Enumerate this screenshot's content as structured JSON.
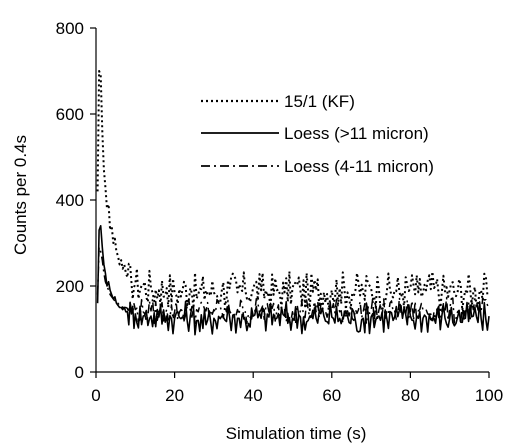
{
  "chart_data": {
    "type": "line",
    "xlabel": "Simulation time (s)",
    "ylabel": "Counts per 0.4s",
    "xlim": [
      0,
      100
    ],
    "ylim": [
      0,
      800
    ],
    "xticks": [
      "0",
      "20",
      "40",
      "60",
      "80",
      "100"
    ],
    "yticks": [
      "0",
      "200",
      "400",
      "600",
      "800"
    ],
    "grid": false,
    "legend_position": "top-right",
    "series": [
      {
        "name": "15/1 (KF)",
        "style": "dotted",
        "color": "#000000",
        "x": [
          0.4,
          0.8,
          1.2,
          1.6,
          2.0,
          2.4,
          2.8,
          3.2,
          3.6,
          4.0,
          4.4,
          4.8,
          5.2,
          5.6,
          6.0,
          6.4,
          6.8,
          7.2,
          7.6,
          8.0,
          9.0,
          10.0,
          12.0,
          14.0,
          16.0,
          18.0,
          20.0,
          22.0,
          24.0,
          26.0,
          28.0,
          30.0,
          32.0,
          34.0,
          36.0,
          38.0,
          40.0,
          42.0,
          44.0,
          46.0,
          48.0,
          50.0,
          52.0,
          54.0,
          56.0,
          58.0,
          60.0,
          62.0,
          64.0,
          66.0,
          68.0,
          70.0,
          72.0,
          74.0,
          76.0,
          78.0,
          80.0,
          82.0,
          84.0,
          86.0,
          88.0,
          90.0,
          92.0,
          94.0,
          96.0,
          98.0,
          100.0
        ],
        "values": [
          420,
          700,
          690,
          560,
          470,
          430,
          380,
          390,
          330,
          340,
          300,
          310,
          280,
          270,
          250,
          260,
          240,
          250,
          230,
          220,
          210,
          205,
          200,
          195,
          190,
          195,
          185,
          190,
          195,
          180,
          190,
          185,
          190,
          195,
          185,
          190,
          195,
          190,
          185,
          190,
          185,
          195,
          190,
          185,
          190,
          185,
          190,
          195,
          185,
          190,
          185,
          195,
          190,
          185,
          190,
          185,
          195,
          185,
          190,
          195,
          185,
          190,
          185,
          190,
          185,
          190,
          180
        ]
      },
      {
        "name": "Loess (>11 micron)",
        "style": "solid",
        "color": "#000000",
        "x": [
          0.4,
          0.8,
          1.2,
          1.6,
          2.0,
          2.4,
          2.8,
          3.2,
          3.6,
          4.0,
          4.4,
          4.8,
          5.2,
          5.6,
          6.0,
          6.4,
          6.8,
          7.2,
          7.6,
          8.0,
          9.0,
          10.0,
          12.0,
          14.0,
          16.0,
          18.0,
          20.0,
          22.0,
          24.0,
          26.0,
          28.0,
          30.0,
          32.0,
          34.0,
          36.0,
          38.0,
          40.0,
          42.0,
          44.0,
          46.0,
          48.0,
          50.0,
          52.0,
          54.0,
          56.0,
          58.0,
          60.0,
          62.0,
          64.0,
          66.0,
          68.0,
          70.0,
          72.0,
          74.0,
          76.0,
          78.0,
          80.0,
          82.0,
          84.0,
          86.0,
          88.0,
          90.0,
          92.0,
          94.0,
          96.0,
          98.0,
          100.0
        ],
        "values": [
          160,
          330,
          340,
          290,
          250,
          230,
          200,
          210,
          190,
          180,
          170,
          175,
          160,
          155,
          150,
          150,
          145,
          150,
          140,
          140,
          135,
          135,
          130,
          130,
          128,
          130,
          125,
          128,
          130,
          120,
          110,
          125,
          130,
          128,
          125,
          120,
          130,
          125,
          128,
          125,
          130,
          125,
          128,
          120,
          125,
          130,
          128,
          125,
          130,
          120,
          125,
          128,
          130,
          125,
          128,
          125,
          130,
          125,
          128,
          125,
          130,
          125,
          128,
          125,
          130,
          125,
          130
        ]
      },
      {
        "name": "Loess (4-11 micron)",
        "style": "dashdot",
        "color": "#000000",
        "x": [
          0.4,
          0.8,
          1.2,
          1.6,
          2.0,
          2.4,
          2.8,
          3.2,
          3.6,
          4.0,
          4.4,
          4.8,
          5.2,
          5.6,
          6.0,
          6.4,
          6.8,
          7.2,
          7.6,
          8.0,
          9.0,
          10.0,
          12.0,
          14.0,
          16.0,
          18.0,
          20.0,
          22.0,
          24.0,
          26.0,
          28.0,
          30.0,
          32.0,
          34.0,
          36.0,
          38.0,
          40.0,
          42.0,
          44.0,
          46.0,
          48.0,
          50.0,
          52.0,
          54.0,
          56.0,
          58.0,
          60.0,
          62.0,
          64.0,
          66.0,
          68.0,
          70.0,
          72.0,
          74.0,
          76.0,
          78.0,
          80.0,
          82.0,
          84.0,
          86.0,
          88.0,
          90.0,
          92.0,
          94.0,
          96.0,
          98.0,
          100.0
        ],
        "values": [
          180,
          290,
          280,
          260,
          230,
          210,
          200,
          190,
          180,
          175,
          170,
          165,
          160,
          160,
          155,
          155,
          150,
          150,
          150,
          148,
          145,
          145,
          140,
          142,
          140,
          145,
          140,
          142,
          145,
          140,
          142,
          145,
          140,
          142,
          145,
          140,
          142,
          145,
          140,
          142,
          145,
          140,
          142,
          145,
          140,
          142,
          145,
          140,
          142,
          145,
          140,
          142,
          145,
          140,
          142,
          145,
          140,
          142,
          145,
          140,
          142,
          145,
          140,
          142,
          145,
          140,
          145
        ]
      }
    ]
  }
}
